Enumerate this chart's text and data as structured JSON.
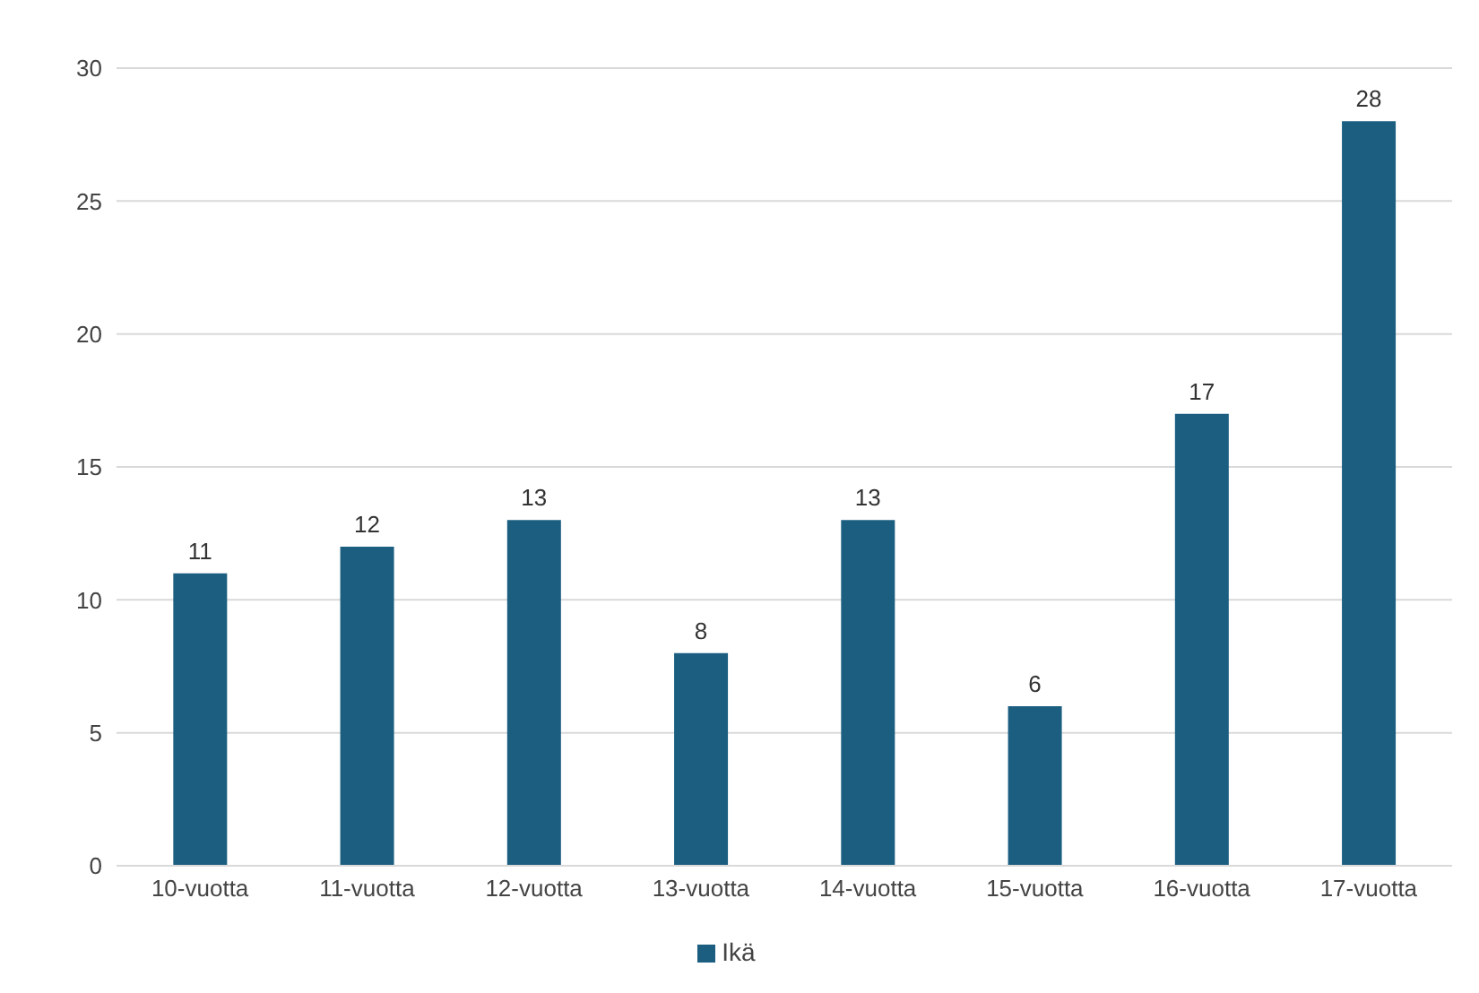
{
  "chart_data": {
    "type": "bar",
    "categories": [
      "10-vuotta",
      "11-vuotta",
      "12-vuotta",
      "13-vuotta",
      "14-vuotta",
      "15-vuotta",
      "16-vuotta",
      "17-vuotta"
    ],
    "series": [
      {
        "name": "Ikä",
        "color": "#1b5e80",
        "values": [
          11,
          12,
          13,
          8,
          13,
          6,
          17,
          28
        ]
      }
    ],
    "ylim": [
      0,
      30
    ],
    "yticks": [
      0,
      5,
      10,
      15,
      20,
      25,
      30
    ],
    "grid": "y",
    "legend": "bottom",
    "data_labels": true
  }
}
